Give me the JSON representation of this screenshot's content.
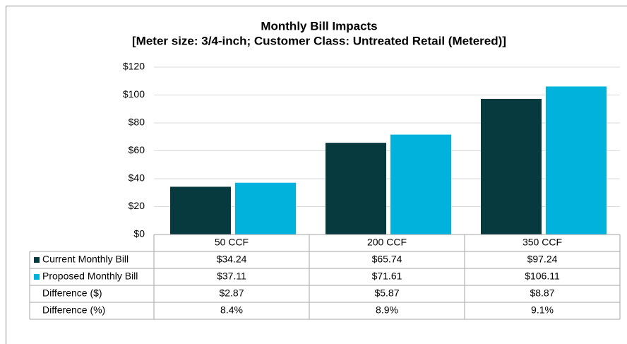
{
  "chart_data": {
    "type": "bar",
    "title": "Monthly Bill Impacts",
    "subtitle": "[Meter size: 3/4-inch; Customer Class: Untreated Retail (Metered)]",
    "categories": [
      "50 CCF",
      "200 CCF",
      "350 CCF"
    ],
    "series": [
      {
        "name": "Current Monthly Bill",
        "color": "#073a3e",
        "values": [
          34.24,
          65.74,
          97.24
        ],
        "value_labels": [
          "$34.24",
          "$65.74",
          "$97.24"
        ]
      },
      {
        "name": "Proposed Monthly Bill",
        "color": "#00b2dc",
        "values": [
          37.11,
          71.61,
          106.11
        ],
        "value_labels": [
          "$37.11",
          "$71.61",
          "$106.11"
        ]
      }
    ],
    "table_rows": [
      {
        "name": "Difference ($)",
        "values": [
          2.87,
          5.87,
          8.87
        ],
        "value_labels": [
          "$2.87",
          "$5.87",
          "$8.87"
        ]
      },
      {
        "name": "Difference (%)",
        "values": [
          8.4,
          8.9,
          9.1
        ],
        "value_labels": [
          "8.4%",
          "8.9%",
          "9.1%"
        ]
      }
    ],
    "ylim": [
      0,
      120
    ],
    "yticks": [
      {
        "value": 0,
        "label": "$0"
      },
      {
        "value": 20,
        "label": "$20"
      },
      {
        "value": 40,
        "label": "$40"
      },
      {
        "value": 60,
        "label": "$60"
      },
      {
        "value": 80,
        "label": "$80"
      },
      {
        "value": 100,
        "label": "$100"
      },
      {
        "value": 120,
        "label": "$120"
      }
    ],
    "grid": true
  }
}
